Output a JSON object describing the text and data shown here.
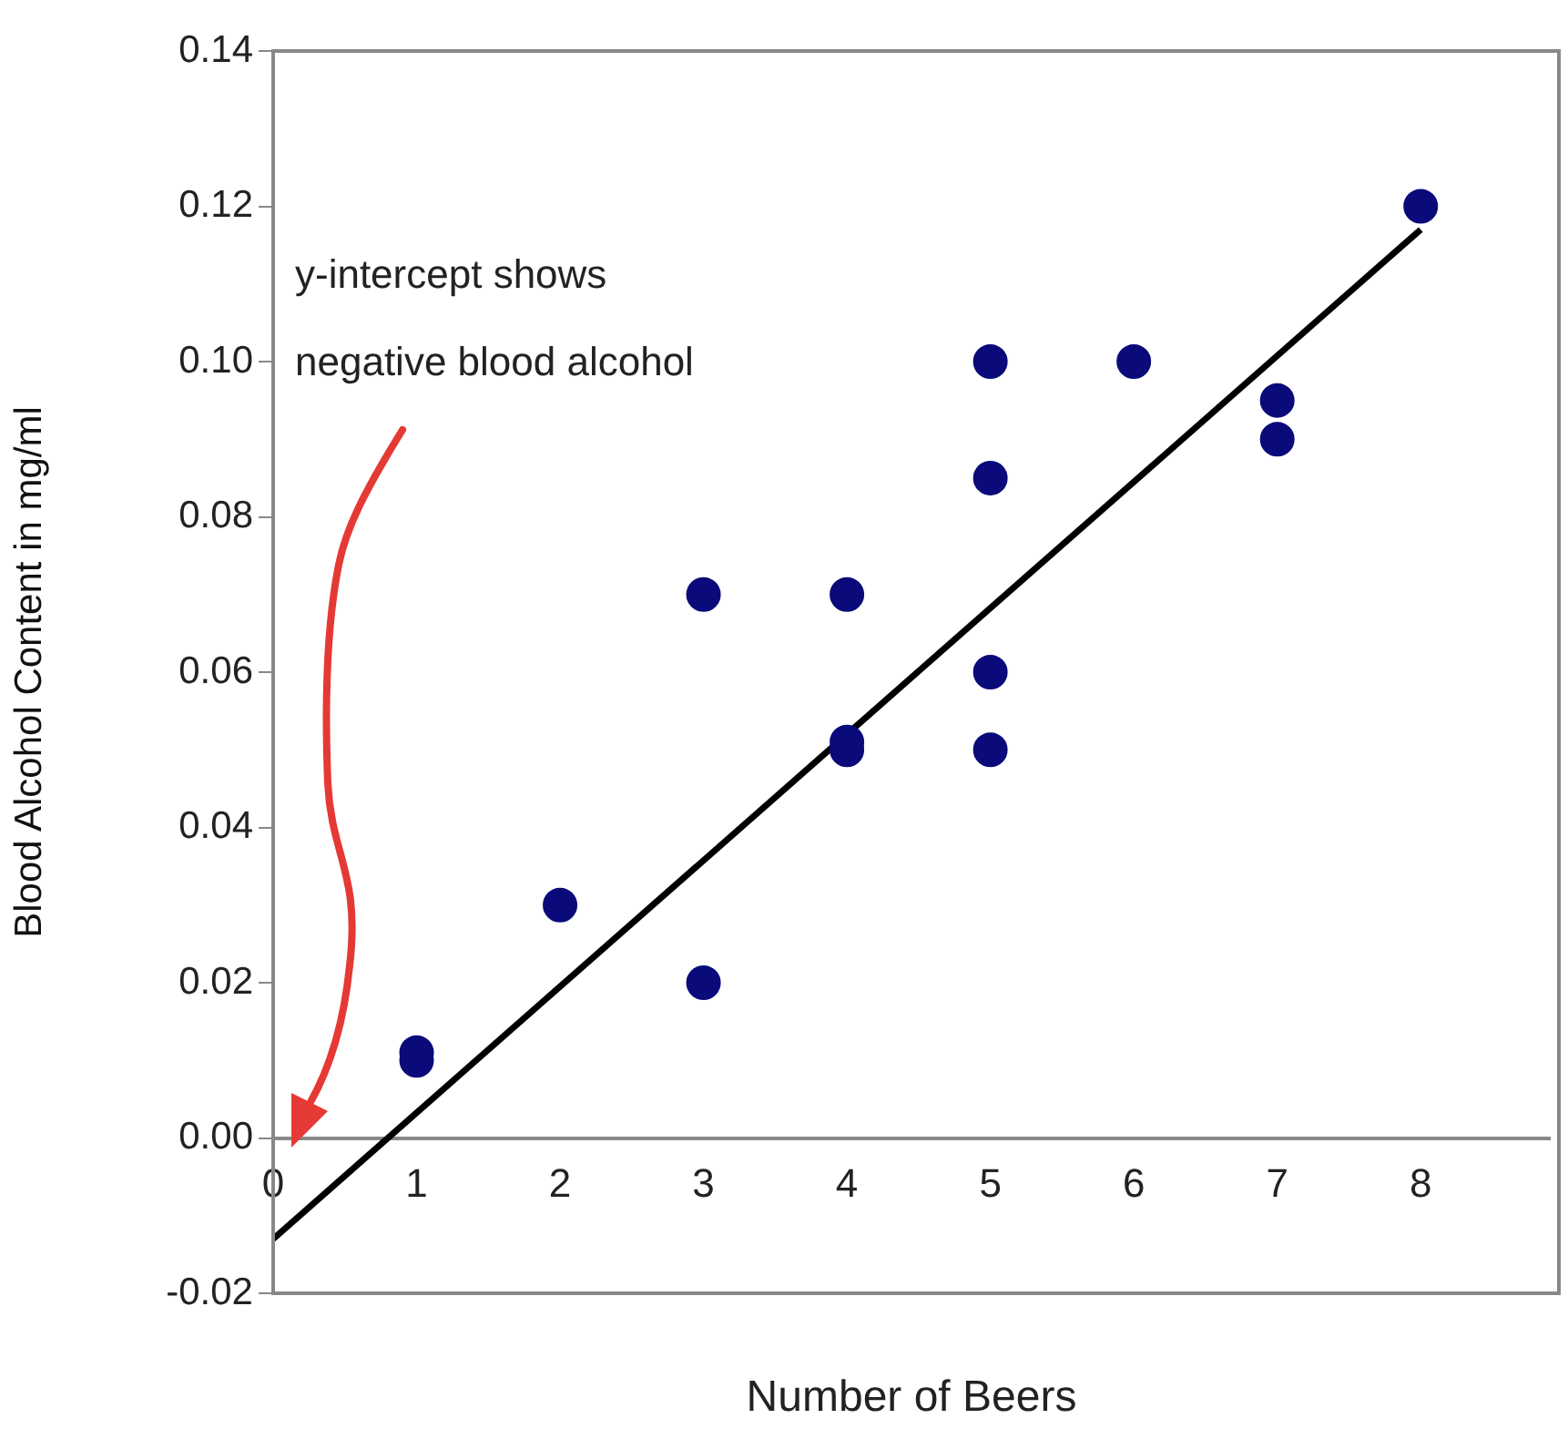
{
  "chart_data": {
    "type": "scatter",
    "xlabel": "Number of Beers",
    "ylabel": "Blood Alcohol Content in mg/ml",
    "annotations": [
      "y-intercept shows\nnegative blood alcohol"
    ],
    "series": [
      {
        "marker": "circle",
        "color": "#0a0a7a",
        "x": [
          1,
          1,
          2,
          3,
          3,
          4,
          4,
          4,
          5,
          5,
          5,
          5,
          6,
          7,
          7,
          8
        ],
        "values": [
          0.01,
          0.011,
          0.03,
          0.07,
          0.02,
          0.07,
          0.05,
          0.051,
          0.1,
          0.085,
          0.06,
          0.05,
          0.1,
          0.095,
          0.09,
          0.12
        ]
      },
      {
        "type": "line",
        "color": "#000000",
        "x": [
          0,
          8
        ],
        "values": [
          -0.013,
          0.117
        ]
      }
    ],
    "xlim": [
      0,
      8.9
    ],
    "xticks": [
      0,
      1,
      2,
      3,
      4,
      5,
      6,
      7,
      8
    ],
    "ylim": [
      -0.02,
      0.14
    ],
    "yticks": [
      {
        "value": -0.02,
        "label": "-0.02"
      },
      {
        "value": 0,
        "label": "0.00"
      },
      {
        "value": 0.02,
        "label": "0.02"
      },
      {
        "value": 0.04,
        "label": "0.04"
      },
      {
        "value": 0.06,
        "label": "0.06"
      },
      {
        "value": 0.08,
        "label": "0.08"
      },
      {
        "value": 0.1,
        "label": "0.10"
      },
      {
        "value": 0.12,
        "label": "0.12"
      },
      {
        "value": 0.14,
        "label": "0.14"
      }
    ],
    "grid": false,
    "legend": false
  }
}
